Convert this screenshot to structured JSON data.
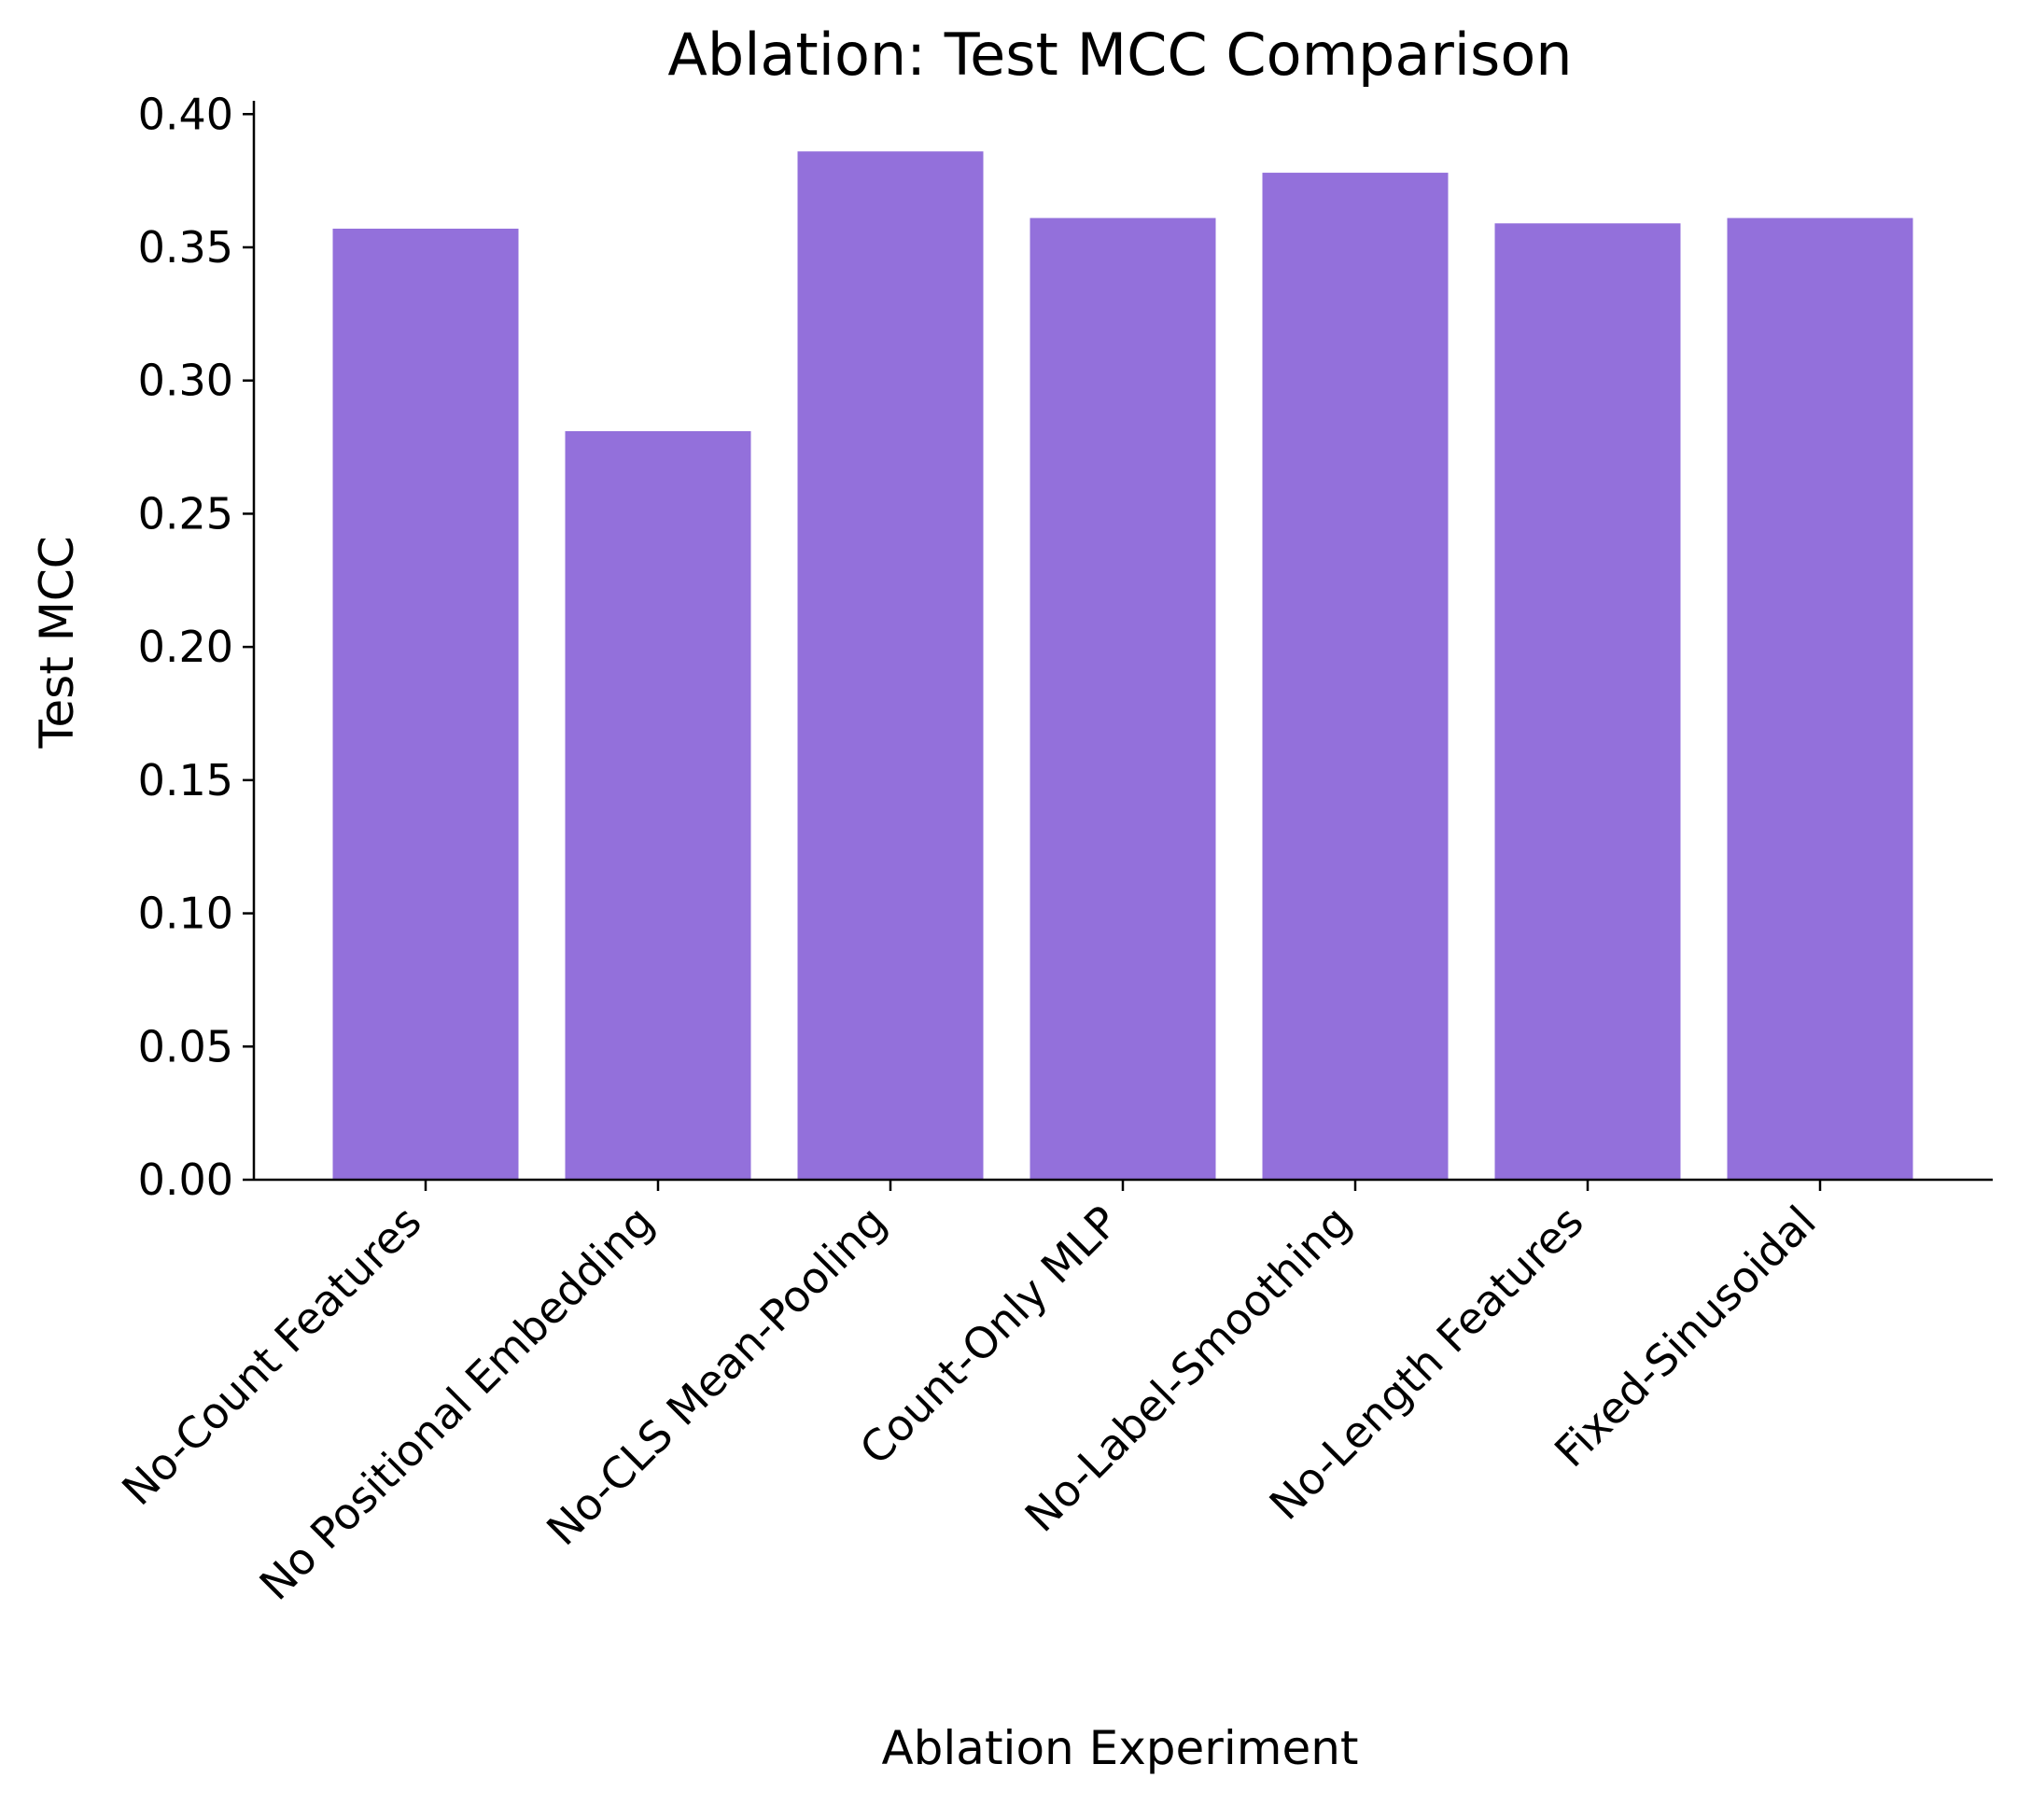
{
  "chart_data": {
    "type": "bar",
    "title": "Ablation: Test MCC Comparison",
    "xlabel": "Ablation Experiment",
    "ylabel": "Test MCC",
    "categories": [
      "No-Count Features",
      "No Positional Embedding",
      "No-CLS Mean-Pooling",
      "Count-Only MLP",
      "No-Label-Smoothing",
      "No-Length Features",
      "Fixed-Sinusoidal"
    ],
    "values": [
      0.357,
      0.281,
      0.386,
      0.361,
      0.378,
      0.359,
      0.361
    ],
    "ylim": [
      0,
      0.405
    ],
    "yticks": [
      "0.00",
      "0.05",
      "0.10",
      "0.15",
      "0.20",
      "0.25",
      "0.30",
      "0.35",
      "0.40"
    ],
    "bar_color": "#9370db",
    "grid": false
  }
}
